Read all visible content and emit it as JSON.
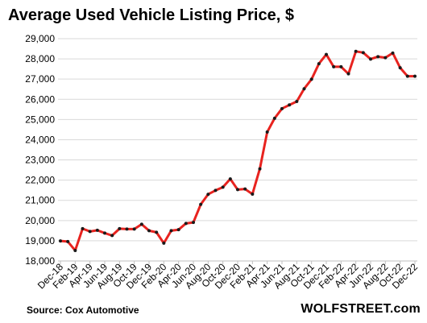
{
  "title": "Average Used Vehicle Listing Price, $",
  "source": "Source: Cox Automotive",
  "brand": "WOLFSTREET.com",
  "colors": {
    "line": "#e8231f",
    "markers": "#1a1a1a",
    "grid": "#d9d9d9",
    "axis": "#bfbfbf",
    "text": "#000000"
  },
  "chart_data": {
    "type": "line",
    "title": "Average Used Vehicle Listing Price, $",
    "xlabel": "",
    "ylabel": "",
    "ylim": [
      18000,
      29000
    ],
    "yticks": [
      18000,
      19000,
      20000,
      21000,
      22000,
      23000,
      24000,
      25000,
      26000,
      27000,
      28000,
      29000
    ],
    "ytick_labels": [
      "18,000",
      "19,000",
      "20,000",
      "21,000",
      "22,000",
      "23,000",
      "24,000",
      "25,000",
      "26,000",
      "27,000",
      "28,000",
      "29,000"
    ],
    "xtick_labels": [
      "Dec-18",
      "Feb-19",
      "Apr-19",
      "Jun-19",
      "Aug-19",
      "Oct-19",
      "Dec-19",
      "Feb-20",
      "Apr-20",
      "Jun-20",
      "Aug-20",
      "Oct-20",
      "Dec-20",
      "Feb-21",
      "Apr-21",
      "Jun-21",
      "Aug-21",
      "Oct-21",
      "Dec-21",
      "Feb-22",
      "Apr-22",
      "Jun-22",
      "Aug-22",
      "Oct-22",
      "Dec-22"
    ],
    "grid": true,
    "x": [
      "Dec-18",
      "Jan-19",
      "Feb-19",
      "Mar-19",
      "Apr-19",
      "May-19",
      "Jun-19",
      "Jul-19",
      "Aug-19",
      "Sep-19",
      "Oct-19",
      "Nov-19",
      "Dec-19",
      "Jan-20",
      "Feb-20",
      "Mar-20",
      "Apr-20",
      "May-20",
      "Jun-20",
      "Jul-20",
      "Aug-20",
      "Sep-20",
      "Oct-20",
      "Nov-20",
      "Dec-20",
      "Jan-21",
      "Feb-21",
      "Mar-21",
      "Apr-21",
      "May-21",
      "Jun-21",
      "Jul-21",
      "Aug-21",
      "Sep-21",
      "Oct-21",
      "Nov-21",
      "Dec-21",
      "Jan-22",
      "Feb-22",
      "Mar-22",
      "Apr-22",
      "May-22",
      "Jun-22",
      "Jul-22",
      "Aug-22",
      "Sep-22",
      "Oct-22",
      "Nov-22",
      "Dec-22"
    ],
    "values": [
      18990,
      18960,
      18520,
      19600,
      19460,
      19520,
      19380,
      19260,
      19600,
      19580,
      19580,
      19820,
      19500,
      19420,
      18880,
      19500,
      19550,
      19860,
      19910,
      20800,
      21300,
      21490,
      21650,
      22060,
      21530,
      21560,
      21310,
      22560,
      24380,
      25060,
      25540,
      25720,
      25890,
      26520,
      26990,
      27760,
      28220,
      27610,
      27610,
      27260,
      28370,
      28310,
      27990,
      28110,
      28060,
      28290,
      27560,
      27140,
      27140
    ]
  }
}
